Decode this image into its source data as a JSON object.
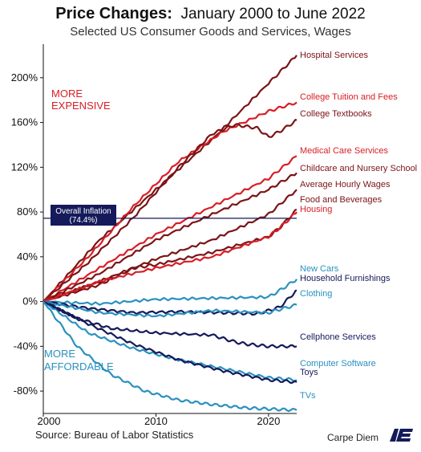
{
  "title": {
    "bold": "Price Changes:",
    "rest": "January 2000 to June 2022"
  },
  "subtitle": "Selected US Consumer Goods and Services, Wages",
  "source": "Source: Bureau of Labor Statistics",
  "brand": {
    "text": "Carpe Diem",
    "logo": "AEI"
  },
  "chart_data": {
    "type": "line",
    "xlim": [
      2000,
      2022.5
    ],
    "ylim": [
      -100,
      230
    ],
    "x_ticks": [
      2000,
      2010,
      2020
    ],
    "y_ticks": [
      200,
      160,
      120,
      80,
      40,
      0,
      -40,
      -80
    ],
    "y_tick_labels": [
      "200%",
      "160%",
      "120%",
      "80%",
      "40%",
      "0%",
      "-40%",
      "-80%"
    ],
    "grid": false,
    "reference_line": {
      "label_line1": "Overall Inflation",
      "label_line2": "(74.4%)",
      "value": 74.4
    },
    "annotations": {
      "expensive_line1": "MORE",
      "expensive_line2": "EXPENSIVE",
      "affordable_line1": "MORE",
      "affordable_line2": "AFFORDABLE"
    },
    "colors": {
      "dark_red": "#7b1416",
      "red": "#d81e25",
      "navy": "#141a5a",
      "blue": "#2a91c0",
      "ref_box": "#141a5a"
    },
    "series": [
      {
        "name": "Hospital Services",
        "color": "#7b1416",
        "x": [
          2000,
          2005,
          2010,
          2015,
          2020,
          2022.5
        ],
        "y": [
          0,
          55,
          100,
          145,
          195,
          220
        ]
      },
      {
        "name": "College Tuition and Fees",
        "color": "#d81e25",
        "x": [
          2000,
          2004,
          2008,
          2012,
          2016,
          2020,
          2022.5
        ],
        "y": [
          0,
          40,
          85,
          125,
          152,
          170,
          178
        ]
      },
      {
        "name": "College Textbooks",
        "color": "#7b1416",
        "x": [
          2000,
          2004,
          2008,
          2012,
          2015,
          2017,
          2019,
          2020,
          2021,
          2022.5
        ],
        "y": [
          0,
          35,
          75,
          120,
          150,
          158,
          155,
          147,
          152,
          162
        ]
      },
      {
        "name": "Medical Care Services",
        "color": "#d81e25",
        "x": [
          2000,
          2005,
          2010,
          2015,
          2020,
          2022.5
        ],
        "y": [
          0,
          30,
          60,
          85,
          110,
          130
        ]
      },
      {
        "name": "Childcare and Nursery School",
        "color": "#7b1416",
        "x": [
          2000,
          2005,
          2010,
          2015,
          2020,
          2022.5
        ],
        "y": [
          0,
          25,
          55,
          78,
          100,
          115
        ]
      },
      {
        "name": "Average Hourly Wages",
        "color": "#7b1416",
        "x": [
          2000,
          2005,
          2010,
          2015,
          2020,
          2022.5
        ],
        "y": [
          0,
          18,
          38,
          55,
          78,
          100
        ]
      },
      {
        "name": "Food and Beverages",
        "color": "#7b1416",
        "x": [
          2000,
          2005,
          2008,
          2010,
          2015,
          2020,
          2021,
          2022.5
        ],
        "y": [
          0,
          15,
          30,
          33,
          44,
          58,
          66,
          82
        ]
      },
      {
        "name": "Housing",
        "color": "#d81e25",
        "x": [
          2000,
          2005,
          2010,
          2015,
          2020,
          2021,
          2022.5
        ],
        "y": [
          0,
          18,
          30,
          40,
          58,
          66,
          80
        ]
      },
      {
        "name": "New Cars",
        "color": "#2a91c0",
        "x": [
          2000,
          2005,
          2010,
          2015,
          2020,
          2021,
          2022.5
        ],
        "y": [
          0,
          -2,
          2,
          3,
          4,
          10,
          20
        ]
      },
      {
        "name": "Household Furnishings",
        "color": "#141a5a",
        "x": [
          2000,
          2004,
          2008,
          2012,
          2016,
          2019,
          2021,
          2022.5
        ],
        "y": [
          0,
          -6,
          -10,
          -9,
          -10,
          -11,
          -5,
          10
        ]
      },
      {
        "name": "Clothing",
        "color": "#2a91c0",
        "x": [
          2000,
          2005,
          2010,
          2015,
          2020,
          2021,
          2022.5
        ],
        "y": [
          0,
          -10,
          -13,
          -8,
          -10,
          -7,
          -3
        ]
      },
      {
        "name": "Cellphone Services",
        "color": "#141a5a",
        "x": [
          2000,
          2003,
          2006,
          2010,
          2015,
          2017,
          2018,
          2020,
          2022.5
        ],
        "y": [
          0,
          -15,
          -24,
          -28,
          -30,
          -36,
          -38,
          -40,
          -40
        ]
      },
      {
        "name": "Computer Software",
        "color": "#2a91c0",
        "x": [
          2000,
          2004,
          2008,
          2012,
          2016,
          2020,
          2022.5
        ],
        "y": [
          0,
          -28,
          -42,
          -52,
          -60,
          -68,
          -70
        ]
      },
      {
        "name": "Toys",
        "color": "#141a5a",
        "x": [
          2000,
          2004,
          2008,
          2012,
          2016,
          2020,
          2022.5
        ],
        "y": [
          0,
          -20,
          -38,
          -52,
          -62,
          -70,
          -72
        ]
      },
      {
        "name": "TVs",
        "color": "#2a91c0",
        "x": [
          2000,
          2003,
          2006,
          2009,
          2012,
          2015,
          2018,
          2020,
          2022.5
        ],
        "y": [
          0,
          -40,
          -65,
          -80,
          -88,
          -92,
          -95,
          -96,
          -97
        ]
      }
    ]
  }
}
